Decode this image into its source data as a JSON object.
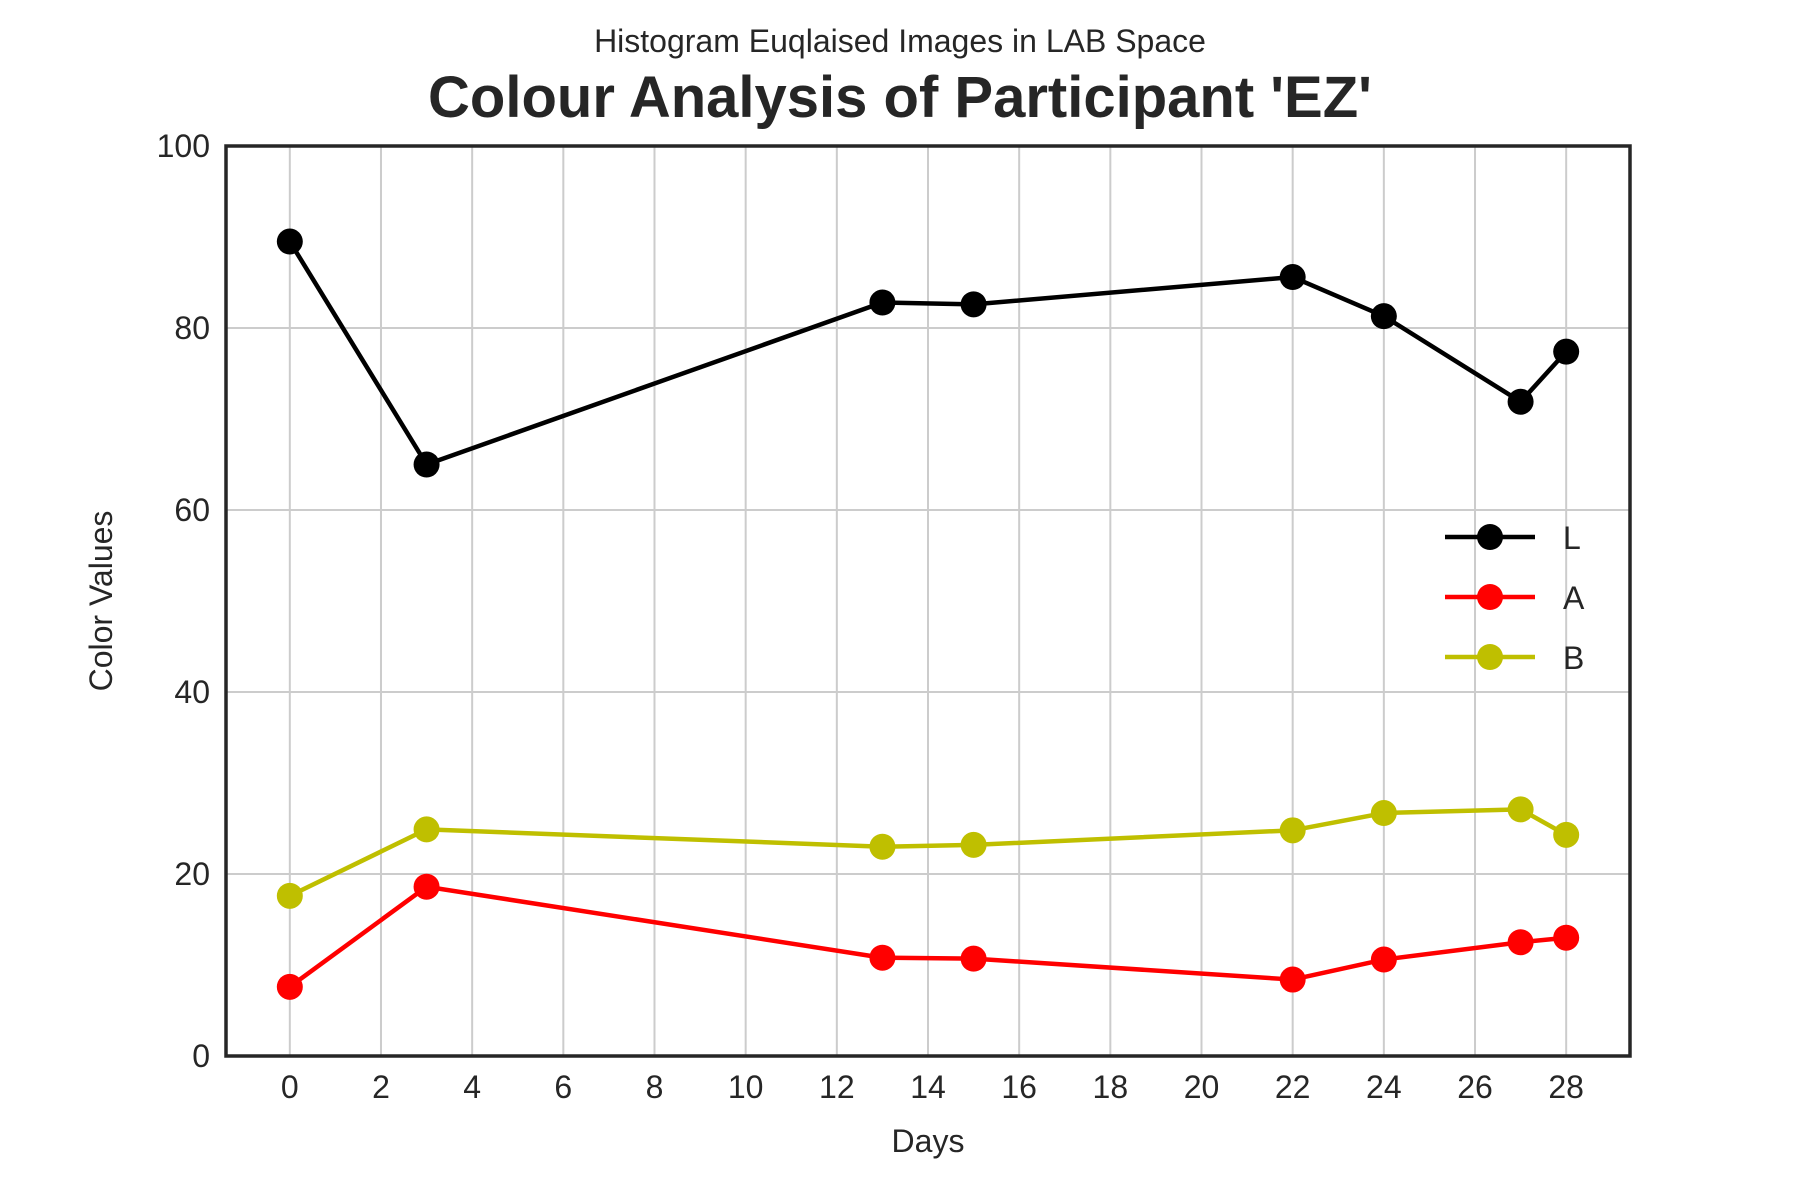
{
  "chart_data": {
    "type": "line",
    "suptitle": "Histogram Euqlaised Images in LAB Space",
    "title": "Colour Analysis of Participant 'EZ'",
    "xlabel": "Days",
    "ylabel": "Color Values",
    "xlim": [
      -1.4,
      29.4
    ],
    "ylim": [
      0,
      100
    ],
    "xticks": [
      0,
      2,
      4,
      6,
      8,
      10,
      12,
      14,
      16,
      18,
      20,
      22,
      24,
      26,
      28
    ],
    "xtick_labels": [
      "0",
      "2",
      "4",
      "6",
      "8",
      "10",
      "12",
      "14",
      "16",
      "18",
      "20",
      "22",
      "24",
      "26",
      "28"
    ],
    "yticks": [
      0,
      20,
      40,
      60,
      80,
      100
    ],
    "ytick_labels": [
      "0",
      "20",
      "40",
      "60",
      "80",
      "100"
    ],
    "grid": true,
    "legend_position": "center-right",
    "x": [
      0,
      3,
      13,
      15,
      22,
      24,
      27,
      28
    ],
    "series": [
      {
        "name": "L",
        "color": "#000000",
        "values": [
          89.5,
          65.0,
          82.8,
          82.6,
          85.6,
          81.3,
          71.9,
          77.4
        ]
      },
      {
        "name": "A",
        "color": "#ff0000",
        "values": [
          7.6,
          18.6,
          10.8,
          10.7,
          8.4,
          10.6,
          12.5,
          13.0
        ]
      },
      {
        "name": "B",
        "color": "#bfbf00",
        "values": [
          17.6,
          24.9,
          23.0,
          23.2,
          24.8,
          26.7,
          27.1,
          24.3
        ]
      }
    ]
  }
}
